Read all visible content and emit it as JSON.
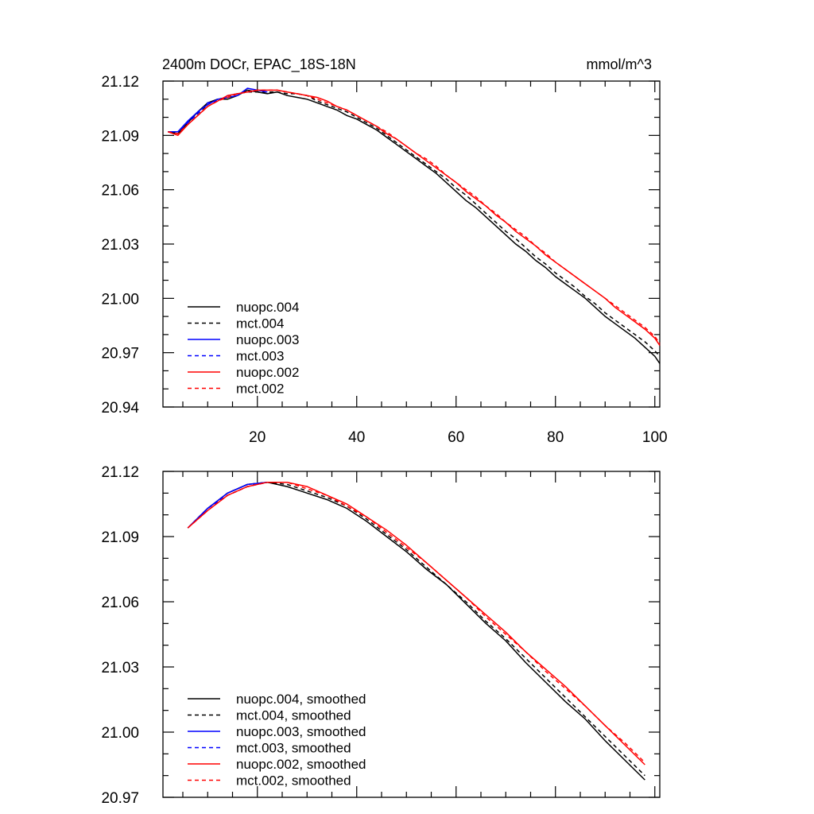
{
  "chart_data": [
    {
      "type": "line",
      "title": "2400m DOCr, EPAC_18S-18N",
      "units": "mmol/m^3",
      "xlim": [
        1,
        101
      ],
      "ylim": [
        20.94,
        21.12
      ],
      "xticks": [
        20,
        40,
        60,
        80,
        100
      ],
      "yticks": [
        "21.12",
        "21.09",
        "21.06",
        "21.03",
        "21.00",
        "20.97",
        "20.94"
      ],
      "legend_position": "bottom-left",
      "series": [
        {
          "name": "nuopc.004",
          "color": "#000000",
          "dash": false,
          "x": [
            2,
            4,
            6,
            8,
            10,
            12,
            14,
            16,
            18,
            20,
            22,
            24,
            26,
            28,
            30,
            32,
            34,
            36,
            38,
            40,
            42,
            44,
            46,
            48,
            50,
            52,
            54,
            56,
            58,
            60,
            62,
            64,
            66,
            68,
            70,
            72,
            74,
            76,
            78,
            80,
            82,
            84,
            86,
            88,
            90,
            92,
            94,
            96,
            98,
            100,
            101
          ],
          "y": [
            21.092,
            21.091,
            21.097,
            21.103,
            21.108,
            21.11,
            21.11,
            21.112,
            21.115,
            21.114,
            21.113,
            21.114,
            21.112,
            21.111,
            21.11,
            21.108,
            21.106,
            21.104,
            21.101,
            21.099,
            21.096,
            21.093,
            21.089,
            21.085,
            21.081,
            21.077,
            21.073,
            21.069,
            21.064,
            21.059,
            21.054,
            21.05,
            21.045,
            21.04,
            21.035,
            21.03,
            21.026,
            21.021,
            21.017,
            21.012,
            21.008,
            21.004,
            21.0,
            20.995,
            20.99,
            20.986,
            20.982,
            20.978,
            20.973,
            20.968,
            20.964
          ]
        },
        {
          "name": "mct.004",
          "color": "#000000",
          "dash": true,
          "x": [
            2,
            4,
            6,
            8,
            10,
            12,
            14,
            16,
            18,
            20,
            22,
            24,
            26,
            28,
            30,
            32,
            34,
            36,
            38,
            40,
            42,
            44,
            46,
            48,
            50,
            52,
            54,
            56,
            58,
            60,
            62,
            64,
            66,
            68,
            70,
            72,
            74,
            76,
            78,
            80,
            82,
            84,
            86,
            88,
            90,
            92,
            94,
            96,
            98,
            100,
            101
          ],
          "y": [
            21.092,
            21.092,
            21.097,
            21.102,
            21.107,
            21.11,
            21.111,
            21.113,
            21.114,
            21.114,
            21.114,
            21.114,
            21.113,
            21.113,
            21.112,
            21.109,
            21.107,
            21.105,
            21.103,
            21.1,
            21.097,
            21.094,
            21.09,
            21.086,
            21.082,
            21.078,
            21.074,
            21.07,
            21.066,
            21.061,
            21.057,
            21.052,
            21.047,
            21.042,
            21.037,
            21.033,
            21.028,
            21.023,
            21.019,
            21.014,
            21.01,
            21.006,
            21.001,
            20.997,
            20.992,
            20.988,
            20.984,
            20.98,
            20.976,
            20.971,
            20.968
          ]
        },
        {
          "name": "nuopc.003",
          "color": "#0000ff",
          "dash": false,
          "x": [
            2,
            4,
            6,
            8,
            10,
            12,
            14,
            16,
            18,
            20,
            22
          ],
          "y": [
            21.092,
            21.092,
            21.098,
            21.103,
            21.107,
            21.11,
            21.111,
            21.112,
            21.116,
            21.115,
            21.114
          ]
        },
        {
          "name": "mct.003",
          "color": "#0000ff",
          "dash": true,
          "x": [
            2,
            4,
            6,
            8,
            10,
            12,
            14,
            16,
            18,
            20,
            22
          ],
          "y": [
            21.092,
            21.092,
            21.097,
            21.102,
            21.108,
            21.109,
            21.112,
            21.113,
            21.114,
            21.115,
            21.114
          ]
        },
        {
          "name": "nuopc.002",
          "color": "#ff0000",
          "dash": false,
          "x": [
            2,
            4,
            6,
            8,
            10,
            12,
            14,
            16,
            18,
            20,
            22,
            24,
            26,
            28,
            30,
            32,
            34,
            36,
            38,
            40,
            42,
            44,
            46,
            48,
            50,
            52,
            54,
            56,
            58,
            60,
            62,
            64,
            66,
            68,
            70,
            72,
            74,
            76,
            78,
            80,
            82,
            84,
            86,
            88,
            90,
            92,
            94,
            96,
            98,
            100,
            101
          ],
          "y": [
            21.092,
            21.09,
            21.096,
            21.101,
            21.106,
            21.109,
            21.112,
            21.113,
            21.114,
            21.115,
            21.115,
            21.115,
            21.114,
            21.113,
            21.112,
            21.111,
            21.109,
            21.106,
            21.104,
            21.101,
            21.098,
            21.095,
            21.091,
            21.088,
            21.084,
            21.08,
            21.076,
            21.072,
            21.068,
            21.064,
            21.059,
            21.055,
            21.051,
            21.046,
            21.042,
            21.037,
            21.033,
            21.029,
            21.024,
            21.02,
            21.016,
            21.012,
            21.008,
            21.004,
            21.0,
            20.995,
            20.991,
            20.987,
            20.983,
            20.978,
            20.974
          ]
        },
        {
          "name": "mct.002",
          "color": "#ff0000",
          "dash": true,
          "x": [
            2,
            4,
            6,
            8,
            10,
            12,
            14,
            16,
            18,
            20,
            22,
            24,
            26,
            28,
            30,
            32,
            34,
            36,
            38,
            40,
            42,
            44,
            46,
            48,
            50,
            52,
            54,
            56,
            58,
            60,
            62,
            64,
            66,
            68,
            70,
            72,
            74,
            76,
            78,
            80,
            82,
            84,
            86,
            88,
            90,
            92,
            94,
            96,
            98,
            100,
            101
          ],
          "y": [
            21.092,
            21.091,
            21.096,
            21.101,
            21.106,
            21.109,
            21.111,
            21.113,
            21.114,
            21.115,
            21.115,
            21.115,
            21.114,
            21.113,
            21.112,
            21.11,
            21.108,
            21.106,
            21.104,
            21.101,
            21.098,
            21.095,
            21.092,
            21.088,
            21.084,
            21.08,
            21.077,
            21.073,
            21.068,
            21.064,
            21.06,
            21.056,
            21.051,
            21.047,
            21.042,
            21.038,
            21.034,
            21.029,
            21.025,
            21.02,
            21.016,
            21.012,
            21.008,
            21.004,
            21.0,
            20.996,
            20.992,
            20.988,
            20.984,
            20.979,
            20.975
          ]
        }
      ]
    },
    {
      "type": "line",
      "title": "",
      "xlim": [
        1,
        101
      ],
      "ylim": [
        20.97,
        21.12
      ],
      "xticks": [
        20,
        40,
        60,
        80,
        100
      ],
      "yticks": [
        "21.12",
        "21.09",
        "21.06",
        "21.03",
        "21.00",
        "20.97"
      ],
      "legend_position": "bottom-left",
      "series": [
        {
          "name": "nuopc.004, smoothed",
          "color": "#000000",
          "dash": false,
          "x": [
            6,
            10,
            14,
            18,
            22,
            26,
            30,
            34,
            38,
            42,
            46,
            50,
            54,
            58,
            62,
            66,
            70,
            74,
            78,
            82,
            86,
            90,
            94,
            98
          ],
          "y": [
            21.094,
            21.103,
            21.11,
            21.114,
            21.115,
            21.113,
            21.11,
            21.107,
            21.103,
            21.097,
            21.09,
            21.083,
            21.075,
            21.068,
            21.059,
            21.05,
            21.042,
            21.032,
            21.023,
            21.014,
            21.006,
            20.996,
            20.987,
            20.978
          ]
        },
        {
          "name": "mct.004, smoothed",
          "color": "#000000",
          "dash": true,
          "x": [
            6,
            10,
            14,
            18,
            22,
            26,
            30,
            34,
            38,
            42,
            46,
            50,
            54,
            58,
            62,
            66,
            70,
            74,
            78,
            82,
            86,
            90,
            94,
            98
          ],
          "y": [
            21.094,
            21.103,
            21.11,
            21.114,
            21.115,
            21.114,
            21.111,
            21.108,
            21.104,
            21.098,
            21.091,
            21.084,
            21.076,
            21.068,
            21.06,
            21.051,
            21.043,
            21.034,
            21.025,
            21.016,
            21.007,
            20.998,
            20.989,
            20.98
          ]
        },
        {
          "name": "nuopc.003, smoothed",
          "color": "#0000ff",
          "dash": false,
          "x": [
            6,
            10,
            14,
            18,
            22
          ],
          "y": [
            21.094,
            21.103,
            21.11,
            21.114,
            21.115
          ]
        },
        {
          "name": "mct.003, smoothed",
          "color": "#0000ff",
          "dash": true,
          "x": [
            6,
            10,
            14,
            18,
            22
          ],
          "y": [
            21.094,
            21.103,
            21.109,
            21.113,
            21.115
          ]
        },
        {
          "name": "nuopc.002, smoothed",
          "color": "#ff0000",
          "dash": false,
          "x": [
            6,
            10,
            14,
            18,
            22,
            26,
            30,
            34,
            38,
            42,
            46,
            50,
            54,
            58,
            62,
            66,
            70,
            74,
            78,
            82,
            86,
            90,
            94,
            98
          ],
          "y": [
            21.094,
            21.102,
            21.109,
            21.113,
            21.115,
            21.115,
            21.113,
            21.109,
            21.105,
            21.099,
            21.093,
            21.086,
            21.078,
            21.07,
            21.062,
            21.054,
            21.046,
            21.037,
            21.029,
            21.021,
            21.012,
            21.003,
            20.994,
            20.985
          ]
        },
        {
          "name": "mct.002, smoothed",
          "color": "#ff0000",
          "dash": true,
          "x": [
            6,
            10,
            14,
            18,
            22,
            26,
            30,
            34,
            38,
            42,
            46,
            50,
            54,
            58,
            62,
            66,
            70,
            74,
            78,
            82,
            86,
            90,
            94,
            98
          ],
          "y": [
            21.094,
            21.102,
            21.109,
            21.113,
            21.115,
            21.115,
            21.112,
            21.109,
            21.104,
            21.099,
            21.092,
            21.085,
            21.078,
            21.07,
            21.062,
            21.053,
            21.045,
            21.037,
            21.028,
            21.02,
            21.012,
            21.003,
            20.995,
            20.986
          ]
        }
      ]
    }
  ]
}
